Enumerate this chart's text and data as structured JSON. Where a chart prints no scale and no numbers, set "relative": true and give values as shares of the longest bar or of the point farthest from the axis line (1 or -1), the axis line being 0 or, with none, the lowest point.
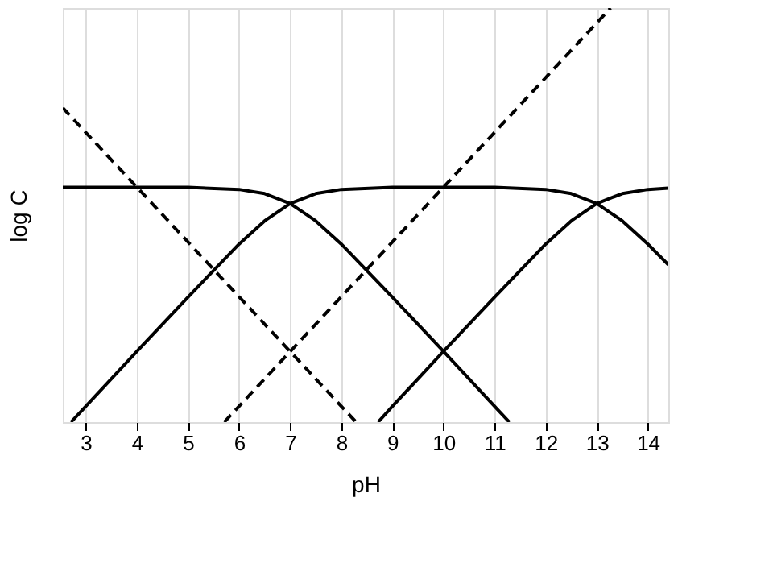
{
  "chart_data": {
    "type": "line",
    "xlabel": "pH",
    "ylabel": "log C",
    "relative": true,
    "xlim": [
      2.55,
      14.4
    ],
    "xticks": [
      3,
      4,
      5,
      6,
      7,
      8,
      9,
      10,
      11,
      12,
      13,
      14
    ],
    "grid": "x",
    "marker": "none",
    "series": [
      {
        "color": "#000000",
        "line_style": "solid",
        "x": [
          2.55,
          5,
          6,
          6.5,
          7,
          7.5,
          8,
          9,
          10,
          11,
          11.29
        ],
        "values": [
          0.567,
          0.567,
          0.562,
          0.552,
          0.528,
          0.486,
          0.43,
          0.302,
          0.171,
          0.038,
          0
        ]
      },
      {
        "color": "#000000",
        "line_style": "solid",
        "x": [
          2.71,
          3,
          4,
          5,
          6,
          6.5,
          7,
          7.5,
          8,
          9,
          10,
          11,
          12,
          12.5,
          13,
          13.5,
          14,
          14.4
        ],
        "values": [
          0,
          0.038,
          0.171,
          0.302,
          0.43,
          0.486,
          0.528,
          0.552,
          0.562,
          0.567,
          0.567,
          0.567,
          0.562,
          0.552,
          0.528,
          0.486,
          0.43,
          0.38
        ]
      },
      {
        "color": "#000000",
        "line_style": "solid",
        "x": [
          8.72,
          9,
          10,
          11,
          12,
          12.5,
          13,
          13.5,
          14,
          14.4
        ],
        "values": [
          0,
          0.038,
          0.171,
          0.302,
          0.43,
          0.486,
          0.528,
          0.552,
          0.562,
          0.565
        ]
      },
      {
        "color": "#000000",
        "line_style": "dashed",
        "x": [
          2.55,
          8.29
        ],
        "values": [
          0.759,
          0
        ]
      },
      {
        "color": "#000000",
        "line_style": "dashed",
        "x": [
          5.71,
          13.27
        ],
        "values": [
          0,
          1
        ]
      }
    ]
  }
}
